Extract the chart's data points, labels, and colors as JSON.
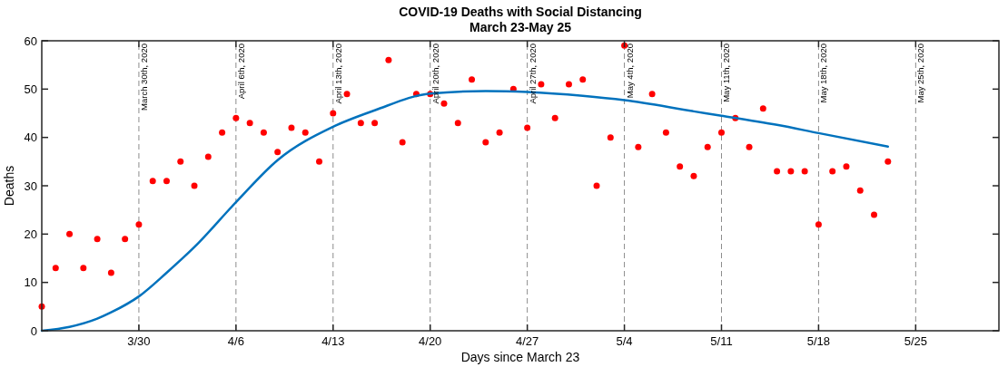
{
  "chart_data": {
    "type": "scatter",
    "title": "COVID-19 Deaths with Social Distancing",
    "subtitle": "March 23-May 25",
    "xlabel": "Days since March 23",
    "ylabel": "Deaths",
    "xlim": [
      "2020-03-23",
      "2020-05-31"
    ],
    "xticks": [
      {
        "value": "2020-03-30",
        "label": "3/30"
      },
      {
        "value": "2020-04-06",
        "label": "4/6"
      },
      {
        "value": "2020-04-13",
        "label": "4/13"
      },
      {
        "value": "2020-04-20",
        "label": "4/20"
      },
      {
        "value": "2020-04-27",
        "label": "4/27"
      },
      {
        "value": "2020-05-04",
        "label": "5/4"
      },
      {
        "value": "2020-05-11",
        "label": "5/11"
      },
      {
        "value": "2020-05-18",
        "label": "5/18"
      },
      {
        "value": "2020-05-25",
        "label": "5/25"
      }
    ],
    "ylim": [
      0,
      60
    ],
    "yticks": [
      0,
      10,
      20,
      30,
      40,
      50,
      60
    ],
    "series": [
      {
        "color": "#ff0000",
        "marker": "circle",
        "x": [
          "2020-03-23",
          "2020-03-24",
          "2020-03-25",
          "2020-03-26",
          "2020-03-27",
          "2020-03-28",
          "2020-03-29",
          "2020-03-30",
          "2020-03-31",
          "2020-04-01",
          "2020-04-02",
          "2020-04-03",
          "2020-04-04",
          "2020-04-05",
          "2020-04-06",
          "2020-04-07",
          "2020-04-08",
          "2020-04-09",
          "2020-04-10",
          "2020-04-11",
          "2020-04-12",
          "2020-04-13",
          "2020-04-14",
          "2020-04-15",
          "2020-04-16",
          "2020-04-17",
          "2020-04-18",
          "2020-04-19",
          "2020-04-20",
          "2020-04-21",
          "2020-04-22",
          "2020-04-23",
          "2020-04-24",
          "2020-04-25",
          "2020-04-26",
          "2020-04-27",
          "2020-04-28",
          "2020-04-29",
          "2020-04-30",
          "2020-05-01",
          "2020-05-02",
          "2020-05-03",
          "2020-05-04",
          "2020-05-05",
          "2020-05-06",
          "2020-05-07",
          "2020-05-08",
          "2020-05-09",
          "2020-05-10",
          "2020-05-11",
          "2020-05-12",
          "2020-05-13",
          "2020-05-14",
          "2020-05-15",
          "2020-05-16",
          "2020-05-17",
          "2020-05-18",
          "2020-05-19",
          "2020-05-20",
          "2020-05-21",
          "2020-05-22",
          "2020-05-23"
        ],
        "values": [
          5,
          13,
          20,
          13,
          19,
          12,
          19,
          22,
          31,
          31,
          35,
          30,
          36,
          41,
          44,
          43,
          41,
          37,
          42,
          41,
          35,
          45,
          49,
          43,
          43,
          56,
          39,
          49,
          49,
          47,
          43,
          52,
          39,
          41,
          50,
          42,
          51,
          44,
          51,
          52,
          30,
          40,
          59,
          38,
          49,
          41,
          34,
          32,
          38,
          41,
          44,
          38,
          46,
          33,
          33,
          33,
          22,
          33,
          34,
          29,
          24,
          35
        ]
      },
      {
        "type": "line",
        "color": "#0072bd",
        "marker": "none",
        "line_style": "solid",
        "x": [
          "2020-03-23",
          "2020-03-25",
          "2020-03-27",
          "2020-03-28",
          "2020-03-30",
          "2020-04-01",
          "2020-04-03",
          "2020-04-06",
          "2020-04-09",
          "2020-04-13",
          "2020-04-16",
          "2020-04-20",
          "2020-04-24",
          "2020-04-27",
          "2020-05-01",
          "2020-05-04",
          "2020-05-09",
          "2020-05-11",
          "2020-05-15",
          "2020-05-18",
          "2020-05-23"
        ],
        "values": [
          0,
          0.8,
          2.5,
          3.8,
          7.1,
          12,
          17.3,
          26.6,
          35.3,
          42.2,
          45.6,
          49.1,
          49.6,
          49.4,
          48.6,
          47.7,
          45.4,
          44.5,
          42.6,
          40.9,
          38.1
        ]
      }
    ],
    "ref_lines": [
      {
        "axis": "x",
        "value": "2020-03-30",
        "label": "March 30th, 2020",
        "color": "#8c8c8c",
        "line_style": "dashed"
      },
      {
        "axis": "x",
        "value": "2020-04-06",
        "label": "April 6th, 2020",
        "color": "#8c8c8c",
        "line_style": "dashed"
      },
      {
        "axis": "x",
        "value": "2020-04-13",
        "label": "April 13th, 2020",
        "color": "#8c8c8c",
        "line_style": "dashed"
      },
      {
        "axis": "x",
        "value": "2020-04-20",
        "label": "April 20th, 2020",
        "color": "#8c8c8c",
        "line_style": "dashed"
      },
      {
        "axis": "x",
        "value": "2020-04-27",
        "label": "April 27th, 2020",
        "color": "#8c8c8c",
        "line_style": "dashed"
      },
      {
        "axis": "x",
        "value": "2020-05-04",
        "label": "May 4th, 2020",
        "color": "#8c8c8c",
        "line_style": "dashed"
      },
      {
        "axis": "x",
        "value": "2020-05-11",
        "label": "May 11th, 2020",
        "color": "#8c8c8c",
        "line_style": "dashed"
      },
      {
        "axis": "x",
        "value": "2020-05-18",
        "label": "May 18th, 2020",
        "color": "#8c8c8c",
        "line_style": "dashed"
      },
      {
        "axis": "x",
        "value": "2020-05-25",
        "label": "May 25th, 2020",
        "color": "#8c8c8c",
        "line_style": "dashed"
      }
    ]
  }
}
